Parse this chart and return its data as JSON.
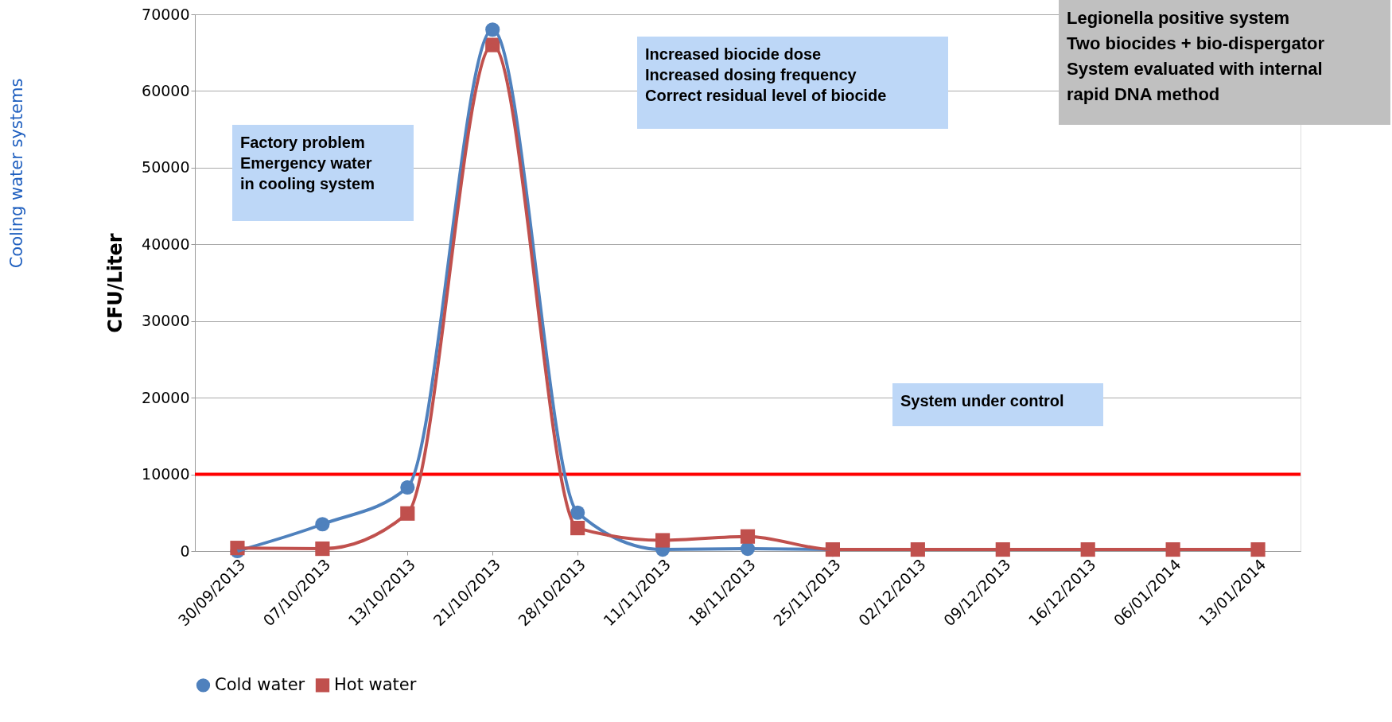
{
  "chart_data": {
    "type": "line",
    "ylabel": "CFU/Liter",
    "categories": [
      "30/09/2013",
      "07/10/2013",
      "13/10/2013",
      "21/10/2013",
      "28/10/2013",
      "11/11/2013",
      "18/11/2013",
      "25/11/2013",
      "02/12/2013",
      "09/12/2013",
      "16/12/2013",
      "06/01/2014",
      "13/01/2014"
    ],
    "series": [
      {
        "name": "Cold water",
        "color": "#4f81bd",
        "marker": "circle",
        "values": [
          0,
          3500,
          8300,
          68000,
          5000,
          200,
          300,
          200,
          null,
          null,
          null,
          null,
          null
        ]
      },
      {
        "name": "Hot water",
        "color": "#c0504d",
        "marker": "square",
        "values": [
          400,
          300,
          4900,
          66000,
          3000,
          1400,
          1900,
          200,
          200,
          200,
          200,
          200,
          200
        ]
      }
    ],
    "ylim": [
      0,
      70000
    ],
    "yticks": [
      0,
      10000,
      20000,
      30000,
      40000,
      50000,
      60000,
      70000
    ],
    "grid": "y",
    "legend": "bottom",
    "line_style": "solid",
    "ref_lines": [
      {
        "axis": "y",
        "value": 10000,
        "color": "#ff0000"
      }
    ],
    "annotations": [
      "Cooling water systems",
      "Factory problem\nEmergency water\nin cooling system",
      "Increased biocide dose\nIncreased dosing frequency\nCorrect residual level of biocide",
      "System under control",
      "Legionella positive system\nTwo biocides + bio-dispergator\nSystem evaluated with internal\nrapid DNA method"
    ]
  }
}
